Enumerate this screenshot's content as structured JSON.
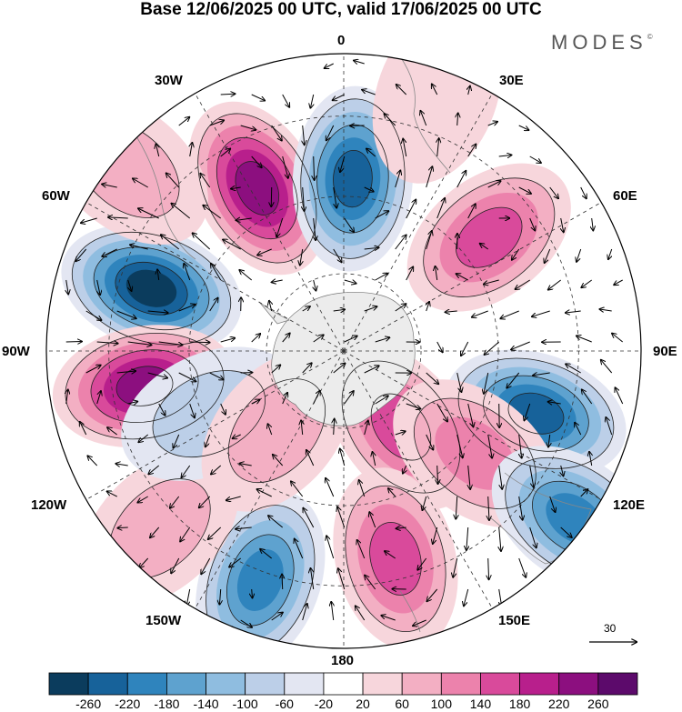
{
  "title": "Base 12/06/2025 00 UTC, valid 17/06/2025 00 UTC",
  "brand": "MODES",
  "brand_mark": "©",
  "longitude_labels": [
    {
      "id": "lon-0",
      "text": "0"
    },
    {
      "id": "lon-30e",
      "text": "30E"
    },
    {
      "id": "lon-60e",
      "text": "60E"
    },
    {
      "id": "lon-90e",
      "text": "90E"
    },
    {
      "id": "lon-120e",
      "text": "120E"
    },
    {
      "id": "lon-150e",
      "text": "150E"
    },
    {
      "id": "lon-180",
      "text": "180"
    },
    {
      "id": "lon-150w",
      "text": "150W"
    },
    {
      "id": "lon-120w",
      "text": "120W"
    },
    {
      "id": "lon-90w",
      "text": "90W"
    },
    {
      "id": "lon-60w",
      "text": "60W"
    },
    {
      "id": "lon-30w",
      "text": "30W"
    }
  ],
  "reference_vector": "30",
  "colorbar": {
    "colors": [
      "#0b3c5d",
      "#17629a",
      "#2f84bd",
      "#5ea2cf",
      "#8fbde0",
      "#bccfe8",
      "#e3e6f2",
      "#ffffff",
      "#f7d6dc",
      "#f3afc3",
      "#ec82ac",
      "#d94a9b",
      "#b81f8c",
      "#8c0f7f",
      "#5c0a6b"
    ],
    "ticks": [
      "-260",
      "-220",
      "-180",
      "-140",
      "-100",
      "-60",
      "-20",
      "20",
      "60",
      "100",
      "140",
      "180",
      "220",
      "260"
    ]
  },
  "anomaly_centers": [
    {
      "lon": -72,
      "colat": 0.68,
      "value": -260
    },
    {
      "lon": -28,
      "colat": 0.62,
      "value": 250
    },
    {
      "lon": 3,
      "colat": 0.58,
      "value": -230
    },
    {
      "lon": 52,
      "colat": 0.62,
      "value": 170
    },
    {
      "lon": 108,
      "colat": 0.68,
      "value": -240
    },
    {
      "lon": -100,
      "colat": 0.68,
      "value": 240
    },
    {
      "lon": 143,
      "colat": 0.32,
      "value": 170
    },
    {
      "lon": 166,
      "colat": 0.72,
      "value": 170
    },
    {
      "lon": -160,
      "colat": 0.82,
      "value": -190
    },
    {
      "lon": 128,
      "colat": 0.56,
      "value": 110
    },
    {
      "lon": 126,
      "colat": 0.96,
      "value": -190
    },
    {
      "lon": -134,
      "colat": 0.86,
      "value": 70
    },
    {
      "lon": -115,
      "colat": 0.5,
      "value": -80
    },
    {
      "lon": -140,
      "colat": 0.35,
      "value": 60
    },
    {
      "lon": -50,
      "colat": 0.95,
      "value": 60
    },
    {
      "lon": 20,
      "colat": 0.92,
      "value": 40
    }
  ]
}
